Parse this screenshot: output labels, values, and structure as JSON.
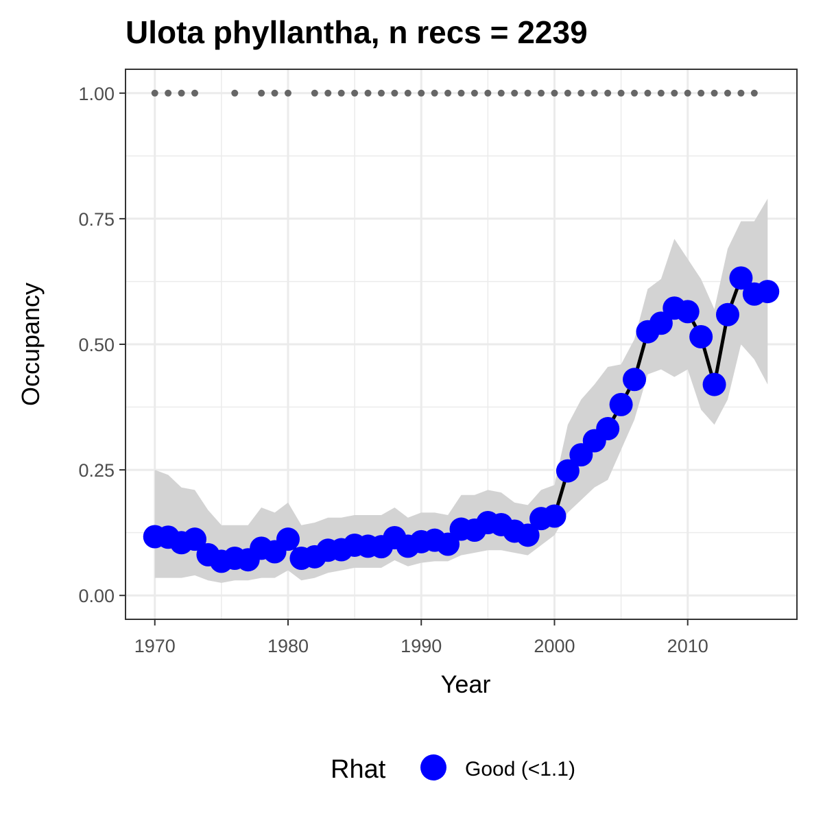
{
  "chart_data": {
    "type": "line",
    "title": "Ulota phyllantha, n recs = 2239",
    "xlabel": "Year",
    "ylabel": "Occupancy",
    "xlim": [
      1967.8,
      2018.2
    ],
    "ylim": [
      -0.0475,
      1.0475
    ],
    "x_ticks": [
      1970,
      1980,
      1990,
      2000,
      2010
    ],
    "x_tick_labels": [
      "1970",
      "1980",
      "1990",
      "2000",
      "2010"
    ],
    "y_ticks": [
      0,
      0.25,
      0.5,
      0.75,
      1.0
    ],
    "y_tick_labels": [
      "0.00",
      "0.25",
      "0.50",
      "0.75",
      "1.00"
    ],
    "grid": true,
    "legend": {
      "title": "Rhat",
      "position": "bottom",
      "entries": [
        {
          "label": "Good (<1.1)",
          "color": "#0000ff"
        }
      ]
    },
    "colors": {
      "points": "#0000ff",
      "line": "#000000",
      "ribbon": "#d3d3d3",
      "record_dots": "#666666",
      "panel_border": "#333333",
      "grid": "#ebebeb"
    },
    "series": [
      {
        "x": [
          1970,
          1971,
          1972,
          1973,
          1974,
          1975,
          1976,
          1977,
          1978,
          1979,
          1980,
          1981,
          1982,
          1983,
          1984,
          1985,
          1986,
          1987,
          1988,
          1989,
          1990,
          1991,
          1992,
          1993,
          1994,
          1995,
          1996,
          1997,
          1998,
          1999,
          2000,
          2001,
          2002,
          2003,
          2004,
          2005,
          2006,
          2007,
          2008,
          2009,
          2010,
          2011,
          2012,
          2013,
          2014,
          2015,
          2016
        ],
        "values": [
          0.117,
          0.116,
          0.105,
          0.112,
          0.081,
          0.068,
          0.074,
          0.071,
          0.094,
          0.087,
          0.112,
          0.074,
          0.077,
          0.09,
          0.091,
          0.1,
          0.098,
          0.097,
          0.115,
          0.098,
          0.107,
          0.11,
          0.102,
          0.132,
          0.13,
          0.145,
          0.141,
          0.128,
          0.12,
          0.153,
          0.158,
          0.248,
          0.28,
          0.308,
          0.332,
          0.38,
          0.43,
          0.525,
          0.542,
          0.572,
          0.565,
          0.515,
          0.42,
          0.559,
          0.632,
          0.6,
          0.605
        ],
        "lower": [
          0.035,
          0.035,
          0.035,
          0.04,
          0.03,
          0.025,
          0.03,
          0.03,
          0.035,
          0.035,
          0.05,
          0.03,
          0.035,
          0.045,
          0.05,
          0.055,
          0.055,
          0.055,
          0.07,
          0.058,
          0.065,
          0.068,
          0.068,
          0.08,
          0.085,
          0.09,
          0.09,
          0.085,
          0.08,
          0.1,
          0.12,
          0.165,
          0.19,
          0.215,
          0.23,
          0.29,
          0.35,
          0.44,
          0.45,
          0.435,
          0.45,
          0.37,
          0.34,
          0.39,
          0.5,
          0.47,
          0.42
        ],
        "upper": [
          0.25,
          0.24,
          0.215,
          0.21,
          0.17,
          0.14,
          0.14,
          0.14,
          0.175,
          0.165,
          0.185,
          0.14,
          0.145,
          0.155,
          0.155,
          0.16,
          0.16,
          0.16,
          0.175,
          0.155,
          0.165,
          0.165,
          0.16,
          0.2,
          0.2,
          0.21,
          0.205,
          0.185,
          0.18,
          0.21,
          0.22,
          0.34,
          0.39,
          0.42,
          0.455,
          0.46,
          0.51,
          0.61,
          0.63,
          0.71,
          0.67,
          0.63,
          0.57,
          0.69,
          0.745,
          0.745,
          0.79
        ]
      }
    ],
    "record_years": [
      1970,
      1971,
      1972,
      1973,
      1976,
      1978,
      1979,
      1980,
      1982,
      1983,
      1984,
      1985,
      1986,
      1987,
      1988,
      1989,
      1990,
      1991,
      1992,
      1993,
      1994,
      1995,
      1996,
      1997,
      1998,
      1999,
      2000,
      2001,
      2002,
      2003,
      2004,
      2005,
      2006,
      2007,
      2008,
      2009,
      2010,
      2011,
      2012,
      2013,
      2014,
      2015
    ],
    "record_y": 1.0
  }
}
